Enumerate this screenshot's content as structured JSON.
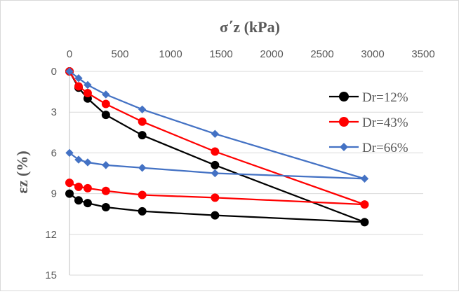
{
  "chart_data": {
    "type": "line",
    "title": "",
    "xlabel": "σ΄z (kPa)",
    "ylabel": "εz (%)",
    "xlim": [
      0,
      3500
    ],
    "ylim": [
      0,
      15
    ],
    "x_axis_position": "top",
    "y_axis_inverted": true,
    "x_ticks": [
      "0",
      "500",
      "1000",
      "1500",
      "2000",
      "2500",
      "3000",
      "3500"
    ],
    "y_ticks": [
      "0",
      "3",
      "6",
      "9",
      "12",
      "15"
    ],
    "grid": "horizontal",
    "legend_position": "right",
    "series": [
      {
        "name": "Dr=12%",
        "color": "#000000",
        "marker": "circle",
        "points": [
          [
            0,
            0
          ],
          [
            90,
            1.2
          ],
          [
            180,
            2.0
          ],
          [
            360,
            3.2
          ],
          [
            720,
            4.7
          ],
          [
            1440,
            6.9
          ],
          [
            2920,
            11.1
          ],
          [
            1440,
            10.6
          ],
          [
            720,
            10.3
          ],
          [
            360,
            10.0
          ],
          [
            180,
            9.7
          ],
          [
            90,
            9.5
          ],
          [
            0,
            9.0
          ]
        ]
      },
      {
        "name": "Dr=43%",
        "color": "#ff0000",
        "marker": "circle",
        "points": [
          [
            0,
            0
          ],
          [
            90,
            1.1
          ],
          [
            180,
            1.6
          ],
          [
            360,
            2.4
          ],
          [
            720,
            3.7
          ],
          [
            1440,
            5.9
          ],
          [
            2920,
            9.8
          ],
          [
            1440,
            9.3
          ],
          [
            720,
            9.1
          ],
          [
            360,
            8.8
          ],
          [
            180,
            8.6
          ],
          [
            90,
            8.5
          ],
          [
            0,
            8.2
          ]
        ]
      },
      {
        "name": "Dr=66%",
        "color": "#4472c4",
        "marker": "diamond",
        "points": [
          [
            0,
            0
          ],
          [
            90,
            0.5
          ],
          [
            180,
            1.0
          ],
          [
            360,
            1.7
          ],
          [
            720,
            2.8
          ],
          [
            1440,
            4.6
          ],
          [
            2920,
            7.9
          ],
          [
            1440,
            7.5
          ],
          [
            720,
            7.1
          ],
          [
            360,
            6.9
          ],
          [
            180,
            6.7
          ],
          [
            90,
            6.5
          ],
          [
            0,
            6.0
          ]
        ]
      }
    ]
  }
}
